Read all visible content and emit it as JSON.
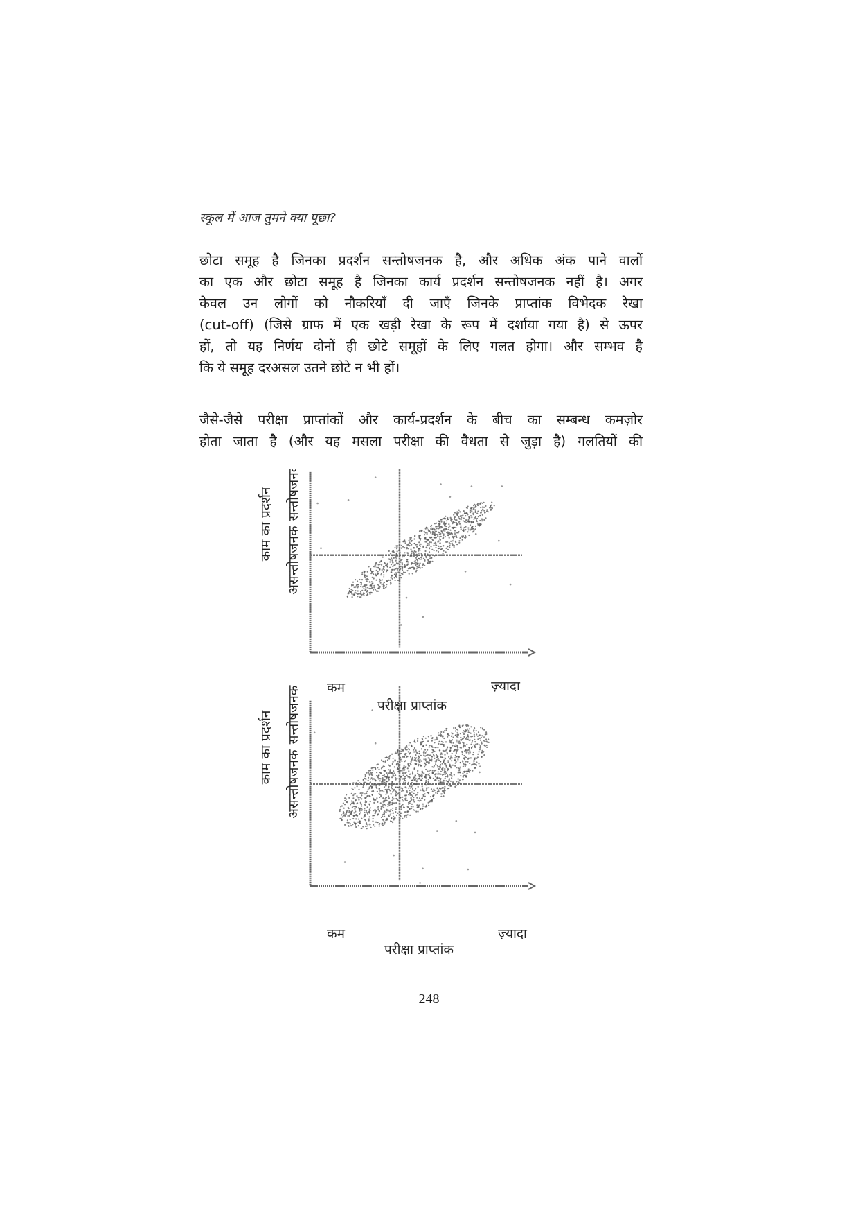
{
  "running_head": "स्कूल में आज तुमने क्या पूछा?",
  "paragraph1_lines": [
    "छोटा समूह है जिनका प्रदर्शन सन्तोषजनक है, और अधिक अंक पाने वालों",
    "का एक और छोटा समूह है जिनका कार्य प्रदर्शन सन्तोषजनक नहीं है। अगर",
    "केवल उन लोगों को नौकरियाँ दी जाएँ जिनके प्राप्तांक विभेदक रेखा",
    "(cut-off) (जिसे ग्राफ में एक खड़ी रेखा के रूप में दर्शाया गया है) से ऊपर",
    "हों, तो यह निर्णय दोनों ही छोटे समूहों के लिए गलत होगा। और सम्भव है",
    "कि ये समूह दरअसल उतने छोटे न भी हों।"
  ],
  "paragraph2_lines": [
    "जैसे-जैसे परीक्षा प्राप्तांकों और कार्य-प्रदर्शन के बीच का सम्बन्ध कमज़ोर",
    "होता जाता है (और यह मसला परीक्षा की वैधता से जुड़ा है) गलतियों की"
  ],
  "charts": [
    {
      "y_axis_title": "काम का प्रदर्शन",
      "y_high_label": "सन्तोषजनक",
      "y_low_label": "असन्तोषजनक",
      "x_low_label": "कम",
      "x_high_label": "ज़्यादा",
      "x_axis_title": "परीक्षा प्राप्तांक"
    },
    {
      "y_axis_title": "काम का प्रदर्शन",
      "y_high_label": "सन्तोषजनक",
      "y_low_label": "असन्तोषजनक",
      "x_low_label": "कम",
      "x_high_label": "ज़्यादा",
      "x_axis_title": "परीक्षा प्राप्तांक"
    }
  ],
  "chart_data": [
    {
      "type": "scatter",
      "title": "",
      "xlabel": "परीक्षा प्राप्तांक",
      "ylabel": "काम का प्रदर्शन",
      "x_tick_labels": [
        "कम",
        "ज़्यादा"
      ],
      "y_tick_labels": [
        "असन्तोषजनक",
        "सन्तोषजनक"
      ],
      "xlim": [
        0,
        1
      ],
      "ylim": [
        0,
        1
      ],
      "x_cutoff": 0.43,
      "y_cutoff": 0.55,
      "cloud": {
        "center": [
          0.53,
          0.58
        ],
        "angle_deg": 37,
        "spread_major": 0.44,
        "spread_minor": 0.09
      },
      "grid": false
    },
    {
      "type": "scatter",
      "title": "",
      "xlabel": "परीक्षा प्राप्तांक",
      "ylabel": "काम का प्रदर्शन",
      "x_tick_labels": [
        "कम",
        "ज़्यादा"
      ],
      "y_tick_labels": [
        "असन्तोषजनक",
        "सन्तोषजनक"
      ],
      "xlim": [
        0,
        1
      ],
      "ylim": [
        0,
        1
      ],
      "x_cutoff": 0.43,
      "y_cutoff": 0.56,
      "cloud": {
        "center": [
          0.5,
          0.6
        ],
        "angle_deg": 36,
        "spread_major": 0.43,
        "spread_minor": 0.17
      },
      "grid": false
    }
  ],
  "page_number": "248",
  "colors": {
    "text": "#1a1a1a",
    "dots": "#555555"
  }
}
